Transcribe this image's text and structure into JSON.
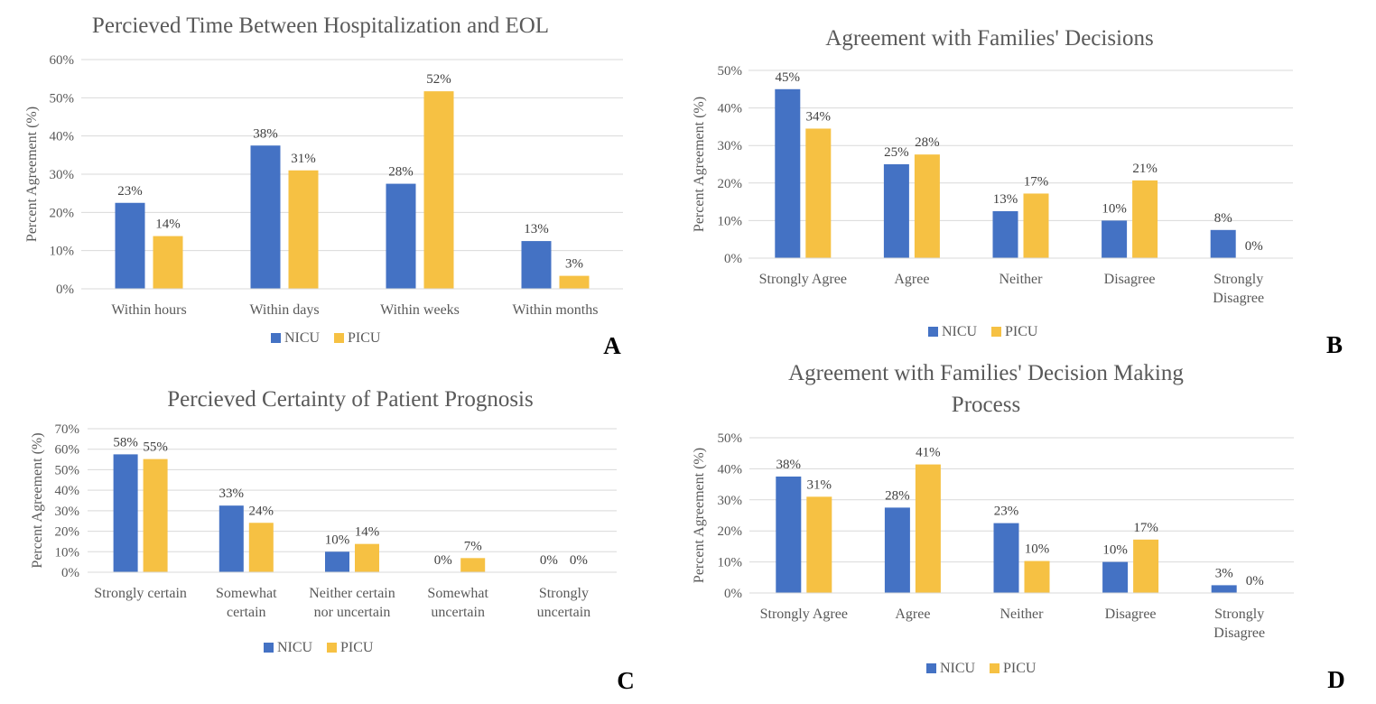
{
  "chart_data": [
    {
      "panel_letter": "A",
      "type": "bar",
      "title_lines": [
        "Percieved Time Between Hospitalization and EOL"
      ],
      "ylabel": "Percent Agreement (%)",
      "ylim": [
        0,
        60
      ],
      "ytick_step": 10,
      "categories": [
        [
          "Within hours"
        ],
        [
          "Within days"
        ],
        [
          "Within weeks"
        ],
        [
          "Within months"
        ]
      ],
      "series": [
        {
          "name": "NICU",
          "color": "#4472c4",
          "values": [
            22.5,
            37.5,
            27.5,
            12.5
          ],
          "labels": [
            "23%",
            "38%",
            "28%",
            "13%"
          ]
        },
        {
          "name": "PICU",
          "color": "#f6c143",
          "values": [
            13.8,
            31.0,
            51.7,
            3.4
          ],
          "labels": [
            "14%",
            "31%",
            "52%",
            "3%"
          ]
        }
      ],
      "grid": true,
      "legend": "bottom"
    },
    {
      "panel_letter": "B",
      "type": "bar",
      "title_lines": [
        "Agreement with Families' Decisions"
      ],
      "ylabel": "Percent Agreement (%)",
      "ylim": [
        0,
        50
      ],
      "ytick_step": 10,
      "categories": [
        [
          "Strongly Agree"
        ],
        [
          "Agree"
        ],
        [
          "Neither"
        ],
        [
          "Disagree"
        ],
        [
          "Strongly",
          "Disagree"
        ]
      ],
      "series": [
        {
          "name": "NICU",
          "color": "#4472c4",
          "values": [
            45.0,
            25.0,
            12.5,
            10.0,
            7.5
          ],
          "labels": [
            "45%",
            "25%",
            "13%",
            "10%",
            "8%"
          ]
        },
        {
          "name": "PICU",
          "color": "#f6c143",
          "values": [
            34.5,
            27.6,
            17.2,
            20.7,
            0
          ],
          "labels": [
            "34%",
            "28%",
            "17%",
            "21%",
            "0%"
          ]
        }
      ],
      "grid": true,
      "legend": "bottom"
    },
    {
      "panel_letter": "C",
      "type": "bar",
      "title_lines": [
        "Percieved Certainty of Patient Prognosis"
      ],
      "ylabel": "Percent Agreement (%)",
      "ylim": [
        0,
        70
      ],
      "ytick_step": 10,
      "categories": [
        [
          "Strongly certain"
        ],
        [
          "Somewhat",
          "certain"
        ],
        [
          "Neither certain",
          "nor uncertain"
        ],
        [
          "Somewhat",
          "uncertain"
        ],
        [
          "Strongly",
          "uncertain"
        ]
      ],
      "series": [
        {
          "name": "NICU",
          "color": "#4472c4",
          "values": [
            57.5,
            32.5,
            10.0,
            0,
            0
          ],
          "labels": [
            "58%",
            "33%",
            "10%",
            "0%",
            "0%"
          ]
        },
        {
          "name": "PICU",
          "color": "#f6c143",
          "values": [
            55.2,
            24.1,
            13.8,
            6.9,
            0
          ],
          "labels": [
            "55%",
            "24%",
            "14%",
            "7%",
            "0%"
          ]
        }
      ],
      "grid": true,
      "legend": "bottom"
    },
    {
      "panel_letter": "D",
      "type": "bar",
      "title_lines": [
        "Agreement with Families' Decision Making",
        "Process"
      ],
      "ylabel": "Percent Agreement (%)",
      "ylim": [
        0,
        50
      ],
      "ytick_step": 10,
      "categories": [
        [
          "Strongly Agree"
        ],
        [
          "Agree"
        ],
        [
          "Neither"
        ],
        [
          "Disagree"
        ],
        [
          "Strongly",
          "Disagree"
        ]
      ],
      "series": [
        {
          "name": "NICU",
          "color": "#4472c4",
          "values": [
            37.5,
            27.5,
            22.5,
            10.0,
            2.5
          ],
          "labels": [
            "38%",
            "28%",
            "23%",
            "10%",
            "3%"
          ]
        },
        {
          "name": "PICU",
          "color": "#f6c143",
          "values": [
            31.0,
            41.4,
            10.3,
            17.2,
            0
          ],
          "labels": [
            "31%",
            "41%",
            "10%",
            "17%",
            "0%"
          ]
        }
      ],
      "grid": true,
      "legend": "bottom"
    }
  ]
}
